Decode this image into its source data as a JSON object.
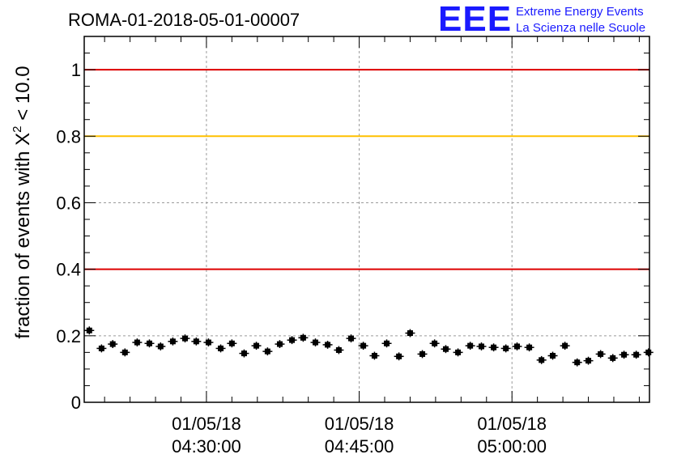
{
  "title": "ROMA-01-2018-05-01-00007",
  "logo": {
    "mark": "EEE",
    "line1": "Extreme Energy Events",
    "line2": "La Scienza nelle Scuole",
    "color": "#1a1aff"
  },
  "chart_data": {
    "type": "scatter",
    "title": "ROMA-01-2018-05-01-00007",
    "ylabel": "fraction of events with X",
    "ylabel_sup": "2",
    "ylabel_tail": " < 10.0",
    "xlabel": "",
    "ylim": [
      0,
      1.1
    ],
    "xlim_minutes_after_0400": [
      18,
      73.5
    ],
    "yticks": [
      0,
      0.2,
      0.4,
      0.6,
      0.8,
      1
    ],
    "ytick_labels": [
      "0",
      "0.2",
      "0.4",
      "0.6",
      "0.8",
      "1"
    ],
    "xticks_minutes_after_0400": [
      30,
      45,
      60
    ],
    "xtick_labels": [
      {
        "date": "01/05/18",
        "time": "04:30:00"
      },
      {
        "date": "01/05/18",
        "time": "04:45:00"
      },
      {
        "date": "01/05/18",
        "time": "05:00:00"
      }
    ],
    "grid": true,
    "reference_lines": [
      {
        "y": 1.0,
        "color": "#dd0000"
      },
      {
        "y": 0.8,
        "color": "#ffc000"
      },
      {
        "y": 0.4,
        "color": "#dd0000"
      }
    ],
    "points_color": "#000000",
    "x_minutes_after_0400": [
      18.5,
      19.7,
      20.8,
      22.0,
      23.2,
      24.4,
      25.5,
      26.7,
      27.9,
      29.0,
      30.2,
      31.4,
      32.5,
      33.7,
      34.9,
      36.0,
      37.2,
      38.4,
      39.5,
      40.7,
      41.9,
      43.0,
      44.2,
      45.4,
      46.5,
      47.7,
      48.9,
      50.0,
      51.2,
      52.4,
      53.5,
      54.7,
      55.9,
      57.0,
      58.2,
      59.4,
      60.5,
      61.7,
      62.9,
      64.0,
      65.2,
      66.4,
      67.5,
      68.7,
      69.9,
      71.0,
      72.2,
      73.4
    ],
    "y": [
      0.216,
      0.162,
      0.175,
      0.15,
      0.18,
      0.177,
      0.168,
      0.183,
      0.192,
      0.183,
      0.18,
      0.162,
      0.177,
      0.147,
      0.17,
      0.153,
      0.175,
      0.187,
      0.194,
      0.18,
      0.173,
      0.157,
      0.192,
      0.17,
      0.14,
      0.177,
      0.138,
      0.208,
      0.145,
      0.177,
      0.16,
      0.15,
      0.17,
      0.168,
      0.165,
      0.162,
      0.168,
      0.165,
      0.127,
      0.14,
      0.17,
      0.12,
      0.125,
      0.145,
      0.133,
      0.143,
      0.143,
      0.15
    ],
    "y_err": 0.012
  }
}
